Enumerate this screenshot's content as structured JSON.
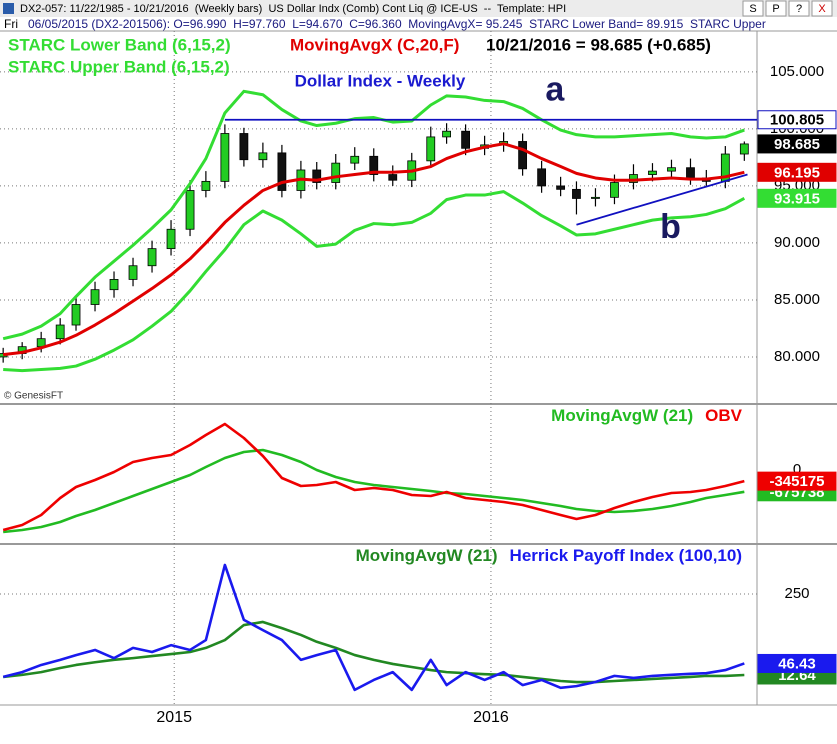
{
  "header": {
    "title_bar": "DX2-057: 11/22/1985 - 10/21/2016  (Weekly bars)  US Dollar Indx (Comb) Cont Liq @ ICE-US  --  Template: HPI",
    "day": "Fri",
    "info": "06/05/2015 (DX2-201506): O=96.990  H=97.760  L=94.670  C=96.360  MovingAvgX= 95.245  STARC Lower Band= 89.915  STARC Upper",
    "buttons": [
      "S",
      "P",
      "?",
      "X"
    ]
  },
  "chart_data": [
    {
      "type": "candlestick",
      "title": "Dollar Index - Weekly",
      "last_bar_label": "10/21/2016 = 98.685 (+0.685)",
      "credit": "© GenesisFT",
      "x": [
        2014.46,
        2014.52,
        2014.58,
        2014.64,
        2014.69,
        2014.75,
        2014.81,
        2014.87,
        2014.93,
        2014.99,
        2015.05,
        2015.1,
        2015.16,
        2015.22,
        2015.28,
        2015.34,
        2015.4,
        2015.45,
        2015.51,
        2015.57,
        2015.63,
        2015.69,
        2015.75,
        2015.81,
        2015.86,
        2015.92,
        2015.98,
        2016.04,
        2016.1,
        2016.16,
        2016.22,
        2016.27,
        2016.33,
        2016.39,
        2016.45,
        2016.51,
        2016.57,
        2016.63,
        2016.68,
        2016.74,
        2016.8
      ],
      "open": [
        80.0,
        80.3,
        80.9,
        81.6,
        82.8,
        84.6,
        85.9,
        86.8,
        88.0,
        89.5,
        91.2,
        94.6,
        95.4,
        99.6,
        97.3,
        97.9,
        94.6,
        96.4,
        95.3,
        97.0,
        97.6,
        96.0,
        95.5,
        97.2,
        99.3,
        99.8,
        98.3,
        98.6,
        98.9,
        96.5,
        95.0,
        94.7,
        93.9,
        94.0,
        95.3,
        96.0,
        96.3,
        96.6,
        95.7,
        95.4,
        97.8
      ],
      "high": [
        80.8,
        81.3,
        82.2,
        83.4,
        85.3,
        86.6,
        87.5,
        88.7,
        90.2,
        92.0,
        95.5,
        96.3,
        100.4,
        100.1,
        98.8,
        98.6,
        97.2,
        97.1,
        97.8,
        98.4,
        98.3,
        96.8,
        97.9,
        100.2,
        100.5,
        100.4,
        99.4,
        99.7,
        99.6,
        97.2,
        95.8,
        95.4,
        94.8,
        96.0,
        96.9,
        97.0,
        97.3,
        97.4,
        96.4,
        98.5,
        98.9
      ],
      "low": [
        79.5,
        79.8,
        80.4,
        81.1,
        82.3,
        84.0,
        85.2,
        86.2,
        87.4,
        88.9,
        90.6,
        94.0,
        94.8,
        96.7,
        96.6,
        94.0,
        93.9,
        94.7,
        94.7,
        96.4,
        95.4,
        95.0,
        94.9,
        96.6,
        98.7,
        97.7,
        97.7,
        98.0,
        95.9,
        94.4,
        94.1,
        92.5,
        93.2,
        93.4,
        94.7,
        95.4,
        95.7,
        95.1,
        94.9,
        94.8,
        97.2
      ],
      "close": [
        80.3,
        80.9,
        81.6,
        82.8,
        84.6,
        85.9,
        86.8,
        88.0,
        89.5,
        91.2,
        94.6,
        95.4,
        99.6,
        97.3,
        97.9,
        94.6,
        96.4,
        95.3,
        97.0,
        97.6,
        96.0,
        95.5,
        97.2,
        99.3,
        99.8,
        98.3,
        98.6,
        98.9,
        96.5,
        95.0,
        94.7,
        93.9,
        94.0,
        95.3,
        96.0,
        96.3,
        96.6,
        95.7,
        95.4,
        97.8,
        98.685
      ],
      "close_tag": true,
      "up_color": "#22cc22",
      "down_color": "#111111",
      "series": [
        {
          "name": "STARC Lower Band (6,15,2)",
          "color": "#33dd33",
          "tag": true,
          "values": [
            78.9,
            78.8,
            78.9,
            79.0,
            79.2,
            79.8,
            80.6,
            81.5,
            82.7,
            84.0,
            85.8,
            87.5,
            89.4,
            91.6,
            92.8,
            92.0,
            90.8,
            89.7,
            89.9,
            91.1,
            91.7,
            91.6,
            91.8,
            92.6,
            93.8,
            94.2,
            94.2,
            94.5,
            93.5,
            92.4,
            91.5,
            90.7,
            90.8,
            91.2,
            91.6,
            92.0,
            92.2,
            92.3,
            92.5,
            93.0,
            93.915
          ]
        },
        {
          "name": "MovingAvgX (C,20,F)",
          "color": "#e00000",
          "tag": true,
          "values": [
            80.2,
            80.4,
            80.8,
            81.3,
            81.9,
            82.8,
            83.8,
            84.9,
            86.0,
            87.2,
            88.6,
            90.0,
            91.8,
            93.3,
            94.6,
            95.3,
            95.6,
            95.5,
            95.8,
            96.0,
            96.2,
            96.2,
            96.3,
            96.7,
            97.4,
            98.0,
            98.4,
            98.7,
            98.2,
            97.4,
            96.7,
            96.1,
            95.7,
            95.5,
            95.5,
            95.6,
            95.7,
            95.6,
            95.6,
            95.8,
            96.195
          ]
        },
        {
          "name": "STARC Upper Band (6,15,2)",
          "color": "#33dd33",
          "tag": false,
          "values": [
            81.6,
            82.0,
            82.7,
            83.8,
            85.3,
            87.0,
            88.4,
            89.8,
            91.3,
            92.9,
            95.2,
            97.4,
            101.4,
            103.3,
            103.0,
            101.7,
            100.7,
            100.3,
            100.5,
            100.9,
            101.0,
            100.6,
            100.7,
            102.1,
            102.9,
            102.8,
            102.5,
            102.4,
            101.8,
            100.8,
            99.9,
            99.5,
            99.3,
            99.3,
            99.4,
            99.5,
            99.6,
            99.3,
            99.2,
            99.3,
            99.9
          ]
        }
      ],
      "lines": [
        {
          "label": "a",
          "color": "#1010c0",
          "tag": true,
          "x": [
            2015.16,
            2016.84
          ],
          "y": [
            100.805,
            100.805
          ]
        },
        {
          "label": "b",
          "color": "#1010c0",
          "tag": false,
          "x": [
            2016.27,
            2016.81
          ],
          "y": [
            91.6,
            96.0
          ]
        }
      ],
      "xlim": [
        2014.45,
        2016.84
      ],
      "ylim": [
        75.96,
        108.59
      ],
      "yticks": [
        {
          "value": 80,
          "label": "80.000"
        },
        {
          "value": 85,
          "label": "85.000"
        },
        {
          "value": 90,
          "label": "90.000"
        },
        {
          "value": 95,
          "label": "95.000"
        },
        {
          "value": 100,
          "label": "100.000"
        },
        {
          "value": 105,
          "label": "105.000"
        }
      ],
      "grid": true
    },
    {
      "type": "line",
      "x": [
        2014.46,
        2014.52,
        2014.58,
        2014.64,
        2014.69,
        2014.75,
        2014.81,
        2014.87,
        2014.93,
        2014.99,
        2015.05,
        2015.1,
        2015.16,
        2015.22,
        2015.28,
        2015.34,
        2015.4,
        2015.45,
        2015.51,
        2015.57,
        2015.63,
        2015.69,
        2015.75,
        2015.81,
        2015.86,
        2015.92,
        2015.98,
        2016.04,
        2016.1,
        2016.16,
        2016.22,
        2016.27,
        2016.33,
        2016.39,
        2016.45,
        2016.51,
        2016.57,
        2016.63,
        2016.68,
        2016.74,
        2016.8
      ],
      "series": [
        {
          "name": "MovingAvgW (21)",
          "color": "#22bb22",
          "tag": true,
          "values": [
            -1922000,
            -1860000,
            -1767000,
            -1612000,
            -1426000,
            -1240000,
            -1023000,
            -806000,
            -589000,
            -372000,
            -155000,
            93000,
            372000,
            558000,
            620000,
            465000,
            248000,
            0,
            -217000,
            -372000,
            -465000,
            -527000,
            -589000,
            -651000,
            -713000,
            -744000,
            -806000,
            -868000,
            -930000,
            -1023000,
            -1116000,
            -1209000,
            -1271000,
            -1302000,
            -1271000,
            -1209000,
            -1116000,
            -992000,
            -868000,
            -775000,
            -675738
          ]
        },
        {
          "name": "OBV",
          "color": "#ee0000",
          "tag": true,
          "values": [
            -1860000,
            -1705000,
            -1395000,
            -868000,
            -527000,
            -310000,
            -62000,
            248000,
            372000,
            465000,
            775000,
            1085000,
            1426000,
            992000,
            434000,
            -248000,
            -496000,
            -465000,
            -372000,
            -620000,
            -558000,
            -620000,
            -775000,
            -806000,
            -682000,
            -868000,
            -930000,
            -992000,
            -1085000,
            -1240000,
            -1395000,
            -1519000,
            -1395000,
            -1178000,
            -992000,
            -837000,
            -713000,
            -682000,
            -620000,
            -496000,
            -345175
          ]
        }
      ],
      "xlim": [
        2014.45,
        2016.84
      ],
      "ylim": [
        -2263000,
        2015000
      ],
      "yticks": [
        0
      ],
      "grid": false
    },
    {
      "type": "line",
      "x": [
        2014.46,
        2014.52,
        2014.58,
        2014.64,
        2014.69,
        2014.75,
        2014.81,
        2014.87,
        2014.93,
        2014.99,
        2015.05,
        2015.1,
        2015.16,
        2015.22,
        2015.28,
        2015.34,
        2015.4,
        2015.45,
        2015.51,
        2015.57,
        2015.63,
        2015.69,
        2015.75,
        2015.81,
        2015.86,
        2015.92,
        2015.98,
        2016.04,
        2016.1,
        2016.16,
        2016.22,
        2016.27,
        2016.33,
        2016.39,
        2016.45,
        2016.51,
        2016.57,
        2016.63,
        2016.68,
        2016.74,
        2016.8
      ],
      "series": [
        {
          "name": "MovingAvgW (21)",
          "color": "#228822",
          "tag": true,
          "values": [
            7,
            13,
            21,
            33,
            42,
            50,
            57,
            62,
            68,
            74,
            80,
            92,
            115,
            159,
            168,
            150,
            130,
            110,
            92,
            71,
            57,
            45,
            36,
            27,
            21,
            18,
            15,
            13,
            7,
            1,
            -5,
            -8,
            -8,
            -5,
            -2,
            1,
            4,
            7,
            10,
            10,
            12.64
          ]
        },
        {
          "name": "Herrick Payoff Index (100,10)",
          "color": "#1a1aee",
          "tag": true,
          "values": [
            7,
            21,
            42,
            57,
            71,
            86,
            62,
            92,
            80,
            100,
            86,
            115,
            335,
            174,
            144,
            115,
            57,
            71,
            86,
            -31,
            -2,
            21,
            -31,
            57,
            -17,
            21,
            -2,
            21,
            -17,
            -2,
            -25,
            -20,
            -8,
            10,
            4,
            10,
            13,
            16,
            18,
            27,
            46.43
          ]
        }
      ],
      "xlim": [
        2014.45,
        2016.84
      ],
      "ylim": [
        -75.3,
        393.5
      ],
      "yticks": [
        250
      ],
      "xticks": [
        2015,
        2016
      ],
      "grid": true
    }
  ]
}
